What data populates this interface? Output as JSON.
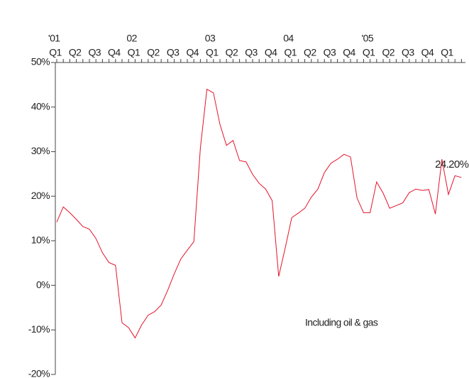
{
  "chart_data": {
    "type": "line",
    "categories": [
      "Q1",
      null,
      null,
      "Q2",
      null,
      null,
      "Q3",
      null,
      null,
      "Q4",
      null,
      null,
      "Q1",
      null,
      null,
      "Q2",
      null,
      null,
      "Q3",
      null,
      null,
      "Q4",
      null,
      null,
      "Q1",
      null,
      null,
      "Q2",
      null,
      null,
      "Q3",
      null,
      null,
      "Q4",
      null,
      null,
      "Q1",
      null,
      null,
      "Q2",
      null,
      null,
      "Q3",
      null,
      null,
      "Q4",
      null,
      null,
      "Q1",
      null,
      null,
      "Q2",
      null,
      null,
      "Q3",
      null,
      null,
      "Q4",
      null,
      null,
      "Q1",
      null,
      null
    ],
    "year_labels": [
      "'01",
      "02",
      "03",
      "04",
      "'05"
    ],
    "series": [
      {
        "name": "Including oil & gas",
        "color": "#e3132a",
        "values": [
          14.2,
          17.6,
          16.3,
          14.8,
          13.2,
          12.6,
          10.5,
          7.3,
          5.1,
          4.5,
          -8.4,
          -9.5,
          -11.8,
          -8.9,
          -6.7,
          -5.9,
          -4.4,
          -1.1,
          2.6,
          5.9,
          7.9,
          9.8,
          30.8,
          44.0,
          43.2,
          36.1,
          31.4,
          32.5,
          28.0,
          27.7,
          24.9,
          22.9,
          21.6,
          19.0,
          2.0,
          8.4,
          15.2,
          16.2,
          17.3,
          19.8,
          21.6,
          25.3,
          27.4,
          28.3,
          29.4,
          28.8,
          19.6,
          16.3,
          16.3,
          23.2,
          20.7,
          17.3,
          17.9,
          18.5,
          20.8,
          21.6,
          21.3,
          21.5,
          16.0,
          28.3,
          20.4,
          24.6,
          24.2
        ],
        "value_labels": [
          null,
          null,
          null,
          null,
          null,
          null,
          null,
          null,
          null,
          null,
          null,
          null,
          null,
          null,
          null,
          null,
          null,
          null,
          null,
          null,
          null,
          null,
          null,
          null,
          null,
          null,
          null,
          null,
          null,
          null,
          null,
          null,
          null,
          null,
          null,
          null,
          null,
          null,
          null,
          null,
          null,
          null,
          null,
          null,
          null,
          null,
          null,
          null,
          null,
          null,
          null,
          null,
          null,
          null,
          null,
          null,
          null,
          null,
          null,
          null,
          null,
          null,
          "24.20%"
        ]
      }
    ],
    "ylim": [
      -20,
      50
    ],
    "yticks": [
      {
        "value": -20,
        "label": "-20%"
      },
      {
        "value": -10,
        "label": "-10%"
      },
      {
        "value": 0,
        "label": "0%"
      },
      {
        "value": 10,
        "label": "10%"
      },
      {
        "value": 20,
        "label": "20%"
      },
      {
        "value": 30,
        "label": "30%"
      },
      {
        "value": 40,
        "label": "40%"
      },
      {
        "value": 50,
        "label": "50%"
      }
    ]
  }
}
